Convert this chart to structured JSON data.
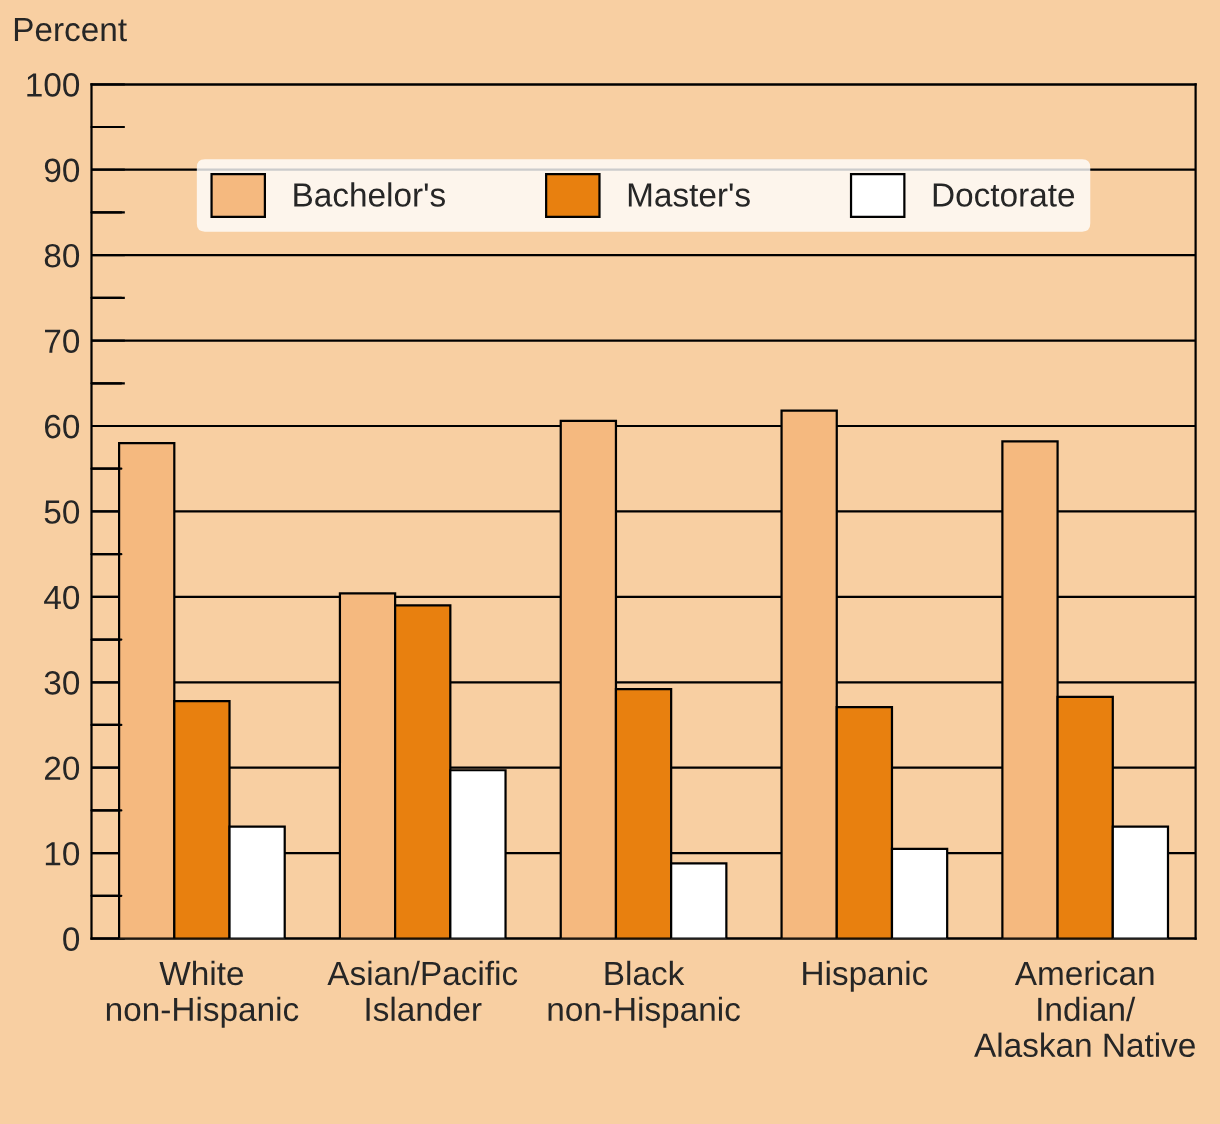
{
  "chart_data": {
    "type": "bar",
    "ylabel": "Percent",
    "categories": [
      "White\nnon-Hispanic",
      "Asian/Pacific\nIslander",
      "Black\nnon-Hispanic",
      "Hispanic",
      "American\nIndian/\nAlaskan Native"
    ],
    "series": [
      {
        "name": "Bachelor's",
        "color": "#f5b97f",
        "values": [
          58,
          40.4,
          60.6,
          61.8,
          58.2
        ]
      },
      {
        "name": "Master's",
        "color": "#e8800f",
        "values": [
          27.8,
          39,
          29.2,
          27.1,
          28.3
        ]
      },
      {
        "name": "Doctorate",
        "color": "#ffffff",
        "values": [
          13.1,
          19.7,
          8.8,
          10.5,
          13.1
        ]
      }
    ],
    "ylim": [
      0,
      100
    ],
    "yticks": [
      0,
      {
        "value": 5,
        "label": null
      },
      10,
      {
        "value": 15,
        "label": null
      },
      20,
      {
        "value": 25,
        "label": null
      },
      30,
      {
        "value": 35,
        "label": null
      },
      40,
      {
        "value": 45,
        "label": null
      },
      50,
      {
        "value": 55,
        "label": null
      },
      60,
      {
        "value": 65,
        "label": null
      },
      70,
      {
        "value": 75,
        "label": null
      },
      80,
      {
        "value": 85,
        "label": null
      },
      90,
      {
        "value": 95,
        "label": null
      },
      100
    ],
    "grid": "y",
    "legend": "top"
  }
}
